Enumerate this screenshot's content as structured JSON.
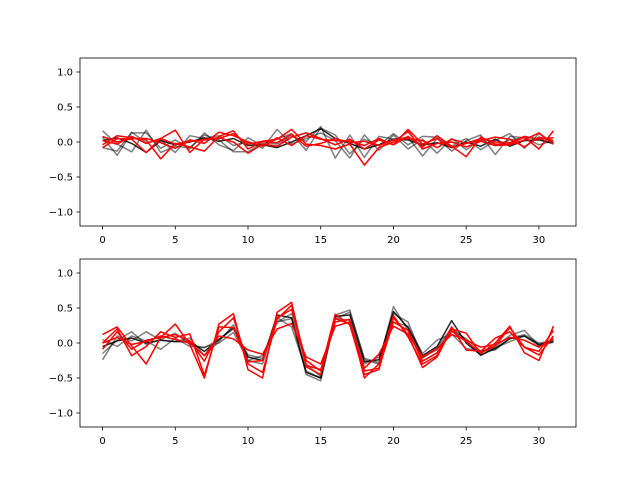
{
  "chart_data": [
    {
      "type": "line",
      "xlim": [
        -1.55,
        32.55
      ],
      "ylim": [
        -1.2,
        1.2
      ],
      "xticks": [
        0,
        5,
        10,
        15,
        20,
        25,
        30
      ],
      "yticks": [
        -1.0,
        -0.5,
        0.0,
        0.5,
        1.0
      ],
      "xtick_labels": [
        "0",
        "5",
        "10",
        "15",
        "20",
        "25",
        "30"
      ],
      "ytick_labels": [
        "−1.0",
        "−0.5",
        "0.0",
        "0.5",
        "1.0"
      ],
      "grid": false,
      "series": [
        {
          "color": "#000000",
          "opacity": 0.5,
          "values": [
            0.16,
            -0.03,
            -0.14,
            0.17,
            -0.15,
            -0.06,
            -0.08,
            0.1,
            0.03,
            -0.14,
            -0.14,
            -0.01,
            -0.03,
            0.08,
            0.01,
            0.22,
            -0.23,
            0.1,
            -0.22,
            0.08,
            0.04,
            0.07,
            -0.2,
            0.05,
            -0.13,
            0.02,
            0.1,
            -0.18,
            0.08,
            0.06,
            0.05,
            -0.03
          ]
        },
        {
          "color": "#000000",
          "opacity": 0.5,
          "values": [
            -0.08,
            -0.13,
            0.14,
            -0.01,
            0.03,
            -0.15,
            0.09,
            0.05,
            0.09,
            -0.05,
            0.01,
            -0.09,
            0.18,
            -0.03,
            0.05,
            0.13,
            0.02,
            -0.23,
            0.1,
            -0.12,
            0.1,
            -0.1,
            0.04,
            -0.16,
            0.05,
            -0.11,
            0.03,
            -0.05,
            0.03,
            0.06,
            -0.04,
            0.02
          ]
        },
        {
          "color": "#000000",
          "opacity": 0.5,
          "values": [
            0.07,
            -0.19,
            0.13,
            0.13,
            -0.09,
            0.03,
            -0.1,
            0.13,
            -0.04,
            -0.12,
            0.06,
            -0.05,
            0.04,
            0.12,
            -0.12,
            0.2,
            0.1,
            -0.17,
            0.04,
            -0.05,
            0.12,
            -0.04,
            0.08,
            0.07,
            -0.06,
            0.05,
            -0.11,
            0.02,
            0.12,
            -0.09,
            0.12,
            -0.01
          ]
        },
        {
          "color": "#000000",
          "opacity": 0.85,
          "values": [
            0.02,
            0.06,
            -0.02,
            -0.15,
            0.02,
            -0.04,
            0.0,
            0.06,
            0.01,
            0.05,
            -0.05,
            -0.04,
            -0.08,
            0.0,
            0.09,
            0.19,
            0.05,
            -0.02,
            -0.1,
            -0.04,
            0.04,
            0.03,
            -0.04,
            -0.01,
            -0.08,
            0.0,
            -0.06,
            0.04,
            -0.06,
            0.02,
            0.03,
            -0.02
          ]
        },
        {
          "color": "#ff0000",
          "opacity": 1.0,
          "values": [
            -0.04,
            0.09,
            0.06,
            0.03,
            -0.24,
            -0.02,
            -0.07,
            -0.13,
            0.08,
            0.16,
            -0.1,
            0.01,
            0.04,
            0.18,
            -0.03,
            -0.05,
            -0.1,
            -0.03,
            -0.33,
            -0.08,
            0.0,
            0.15,
            -0.1,
            -0.02,
            0.0,
            -0.07,
            0.01,
            -0.05,
            -0.04,
            0.03,
            0.13,
            -0.03
          ]
        },
        {
          "color": "#ff0000",
          "opacity": 1.0,
          "values": [
            -0.08,
            0.05,
            0.04,
            -0.15,
            0.05,
            0.17,
            -0.15,
            0.04,
            0.06,
            0.0,
            -0.16,
            -0.03,
            -0.06,
            0.07,
            0.13,
            0.05,
            -0.04,
            0.04,
            -0.1,
            0.03,
            -0.04,
            0.08,
            -0.07,
            0.09,
            -0.06,
            -0.21,
            0.07,
            -0.03,
            -0.03,
            0.07,
            -0.1,
            0.16
          ]
        },
        {
          "color": "#ff0000",
          "opacity": 1.0,
          "values": [
            0.08,
            0.0,
            0.05,
            0.05,
            -0.01,
            -0.09,
            0.03,
            -0.02,
            0.14,
            0.09,
            0.0,
            -0.06,
            0.06,
            -0.05,
            0.09,
            0.04,
            0.02,
            0.01,
            -0.05,
            0.05,
            -0.04,
            0.18,
            -0.03,
            0.05,
            -0.08,
            -0.02,
            0.02,
            0.07,
            0.04,
            -0.07,
            0.07,
            0.02
          ]
        },
        {
          "color": "#ff0000",
          "opacity": 1.0,
          "values": [
            0.02,
            -0.03,
            0.08,
            -0.02,
            0.05,
            -0.03,
            0.01,
            0.03,
            0.05,
            0.12,
            -0.03,
            0.01,
            -0.01,
            0.11,
            -0.06,
            -0.02,
            0.05,
            -0.01,
            0.01,
            -0.05,
            0.03,
            0.05,
            0.02,
            -0.08,
            0.04,
            -0.02,
            0.05,
            0.0,
            -0.01,
            0.08,
            0.04,
            0.06
          ]
        }
      ]
    },
    {
      "type": "line",
      "xlim": [
        -1.55,
        32.55
      ],
      "ylim": [
        -1.2,
        1.2
      ],
      "xticks": [
        0,
        5,
        10,
        15,
        20,
        25,
        30
      ],
      "yticks": [
        -1.0,
        -0.5,
        0.0,
        0.5,
        1.0
      ],
      "xtick_labels": [
        "0",
        "5",
        "10",
        "15",
        "20",
        "25",
        "30"
      ],
      "ytick_labels": [
        "−1.0",
        "−0.5",
        "0.0",
        "0.5",
        "1.0"
      ],
      "grid": false,
      "series": [
        {
          "color": "#000000",
          "opacity": 0.5,
          "values": [
            -0.24,
            0.1,
            0.03,
            0.16,
            0.04,
            0.02,
            0.07,
            -0.18,
            0.02,
            0.26,
            -0.25,
            -0.3,
            0.36,
            0.23,
            -0.4,
            -0.5,
            0.4,
            0.47,
            -0.24,
            -0.3,
            0.52,
            0.18,
            -0.22,
            -0.07,
            0.22,
            0.04,
            -0.18,
            -0.06,
            0.11,
            0.18,
            -0.04,
            0.05
          ]
        },
        {
          "color": "#000000",
          "opacity": 0.5,
          "values": [
            -0.15,
            0.04,
            0.16,
            -0.02,
            0.05,
            0.14,
            -0.02,
            -0.07,
            0.05,
            0.2,
            -0.17,
            -0.22,
            0.3,
            0.35,
            -0.45,
            -0.54,
            0.35,
            0.32,
            -0.3,
            -0.2,
            0.3,
            0.24,
            -0.15,
            0.04,
            0.13,
            -0.08,
            -0.11,
            -0.07,
            0.02,
            0.1,
            -0.04,
            0.01
          ]
        },
        {
          "color": "#000000",
          "opacity": 0.5,
          "values": [
            0.05,
            -0.05,
            0.1,
            0.03,
            -0.09,
            0.07,
            -0.05,
            -0.06,
            0.0,
            0.15,
            -0.25,
            -0.18,
            0.3,
            0.42,
            -0.3,
            -0.48,
            0.35,
            0.44,
            -0.22,
            -0.28,
            0.42,
            0.3,
            -0.2,
            -0.1,
            0.18,
            0.06,
            -0.12,
            -0.1,
            0.07,
            0.12,
            0.0,
            0.03
          ]
        },
        {
          "color": "#000000",
          "opacity": 0.85,
          "values": [
            -0.05,
            0.03,
            0.07,
            0.0,
            0.04,
            0.02,
            0.02,
            -0.12,
            0.05,
            0.22,
            -0.2,
            -0.25,
            0.4,
            0.36,
            -0.42,
            -0.5,
            0.38,
            0.4,
            -0.27,
            -0.24,
            0.45,
            0.22,
            -0.18,
            -0.05,
            0.32,
            0.0,
            -0.17,
            -0.08,
            0.06,
            0.1,
            -0.02,
            0.02
          ]
        },
        {
          "color": "#ff0000",
          "opacity": 1.0,
          "values": [
            0.12,
            0.23,
            -0.04,
            -0.3,
            0.08,
            0.27,
            -0.02,
            -0.5,
            0.27,
            0.42,
            -0.38,
            -0.5,
            0.44,
            0.58,
            -0.32,
            -0.38,
            0.3,
            0.34,
            -0.5,
            -0.3,
            0.36,
            0.12,
            -0.35,
            -0.2,
            0.2,
            0.14,
            -0.15,
            0.0,
            0.24,
            -0.14,
            -0.25,
            0.24
          ]
        },
        {
          "color": "#ff0000",
          "opacity": 1.0,
          "values": [
            0.0,
            0.2,
            -0.18,
            -0.05,
            0.16,
            0.08,
            0.13,
            -0.46,
            0.23,
            0.22,
            -0.27,
            -0.25,
            0.36,
            0.48,
            -0.25,
            -0.4,
            0.41,
            0.26,
            -0.45,
            -0.38,
            0.39,
            0.09,
            -0.3,
            -0.18,
            0.23,
            -0.1,
            -0.12,
            0.07,
            0.16,
            -0.06,
            -0.17,
            0.1
          ]
        },
        {
          "color": "#ff0000",
          "opacity": 1.0,
          "values": [
            -0.09,
            0.16,
            -0.09,
            0.04,
            0.08,
            0.12,
            0.03,
            -0.26,
            0.16,
            0.36,
            -0.3,
            -0.42,
            0.34,
            0.54,
            -0.34,
            -0.45,
            0.35,
            0.27,
            -0.4,
            -0.36,
            0.3,
            0.18,
            -0.26,
            -0.14,
            0.17,
            0.02,
            -0.14,
            -0.04,
            0.22,
            -0.06,
            -0.12,
            0.18
          ]
        },
        {
          "color": "#ff0000",
          "opacity": 1.0,
          "values": [
            0.0,
            0.08,
            -0.02,
            0.02,
            0.1,
            0.05,
            0.0,
            -0.18,
            0.1,
            0.06,
            -0.1,
            -0.16,
            0.2,
            0.28,
            -0.2,
            -0.3,
            0.24,
            0.3,
            -0.36,
            -0.16,
            0.24,
            0.13,
            -0.2,
            -0.08,
            0.12,
            0.04,
            -0.06,
            -0.02,
            0.08,
            0.04,
            -0.06,
            0.06
          ]
        }
      ]
    }
  ]
}
